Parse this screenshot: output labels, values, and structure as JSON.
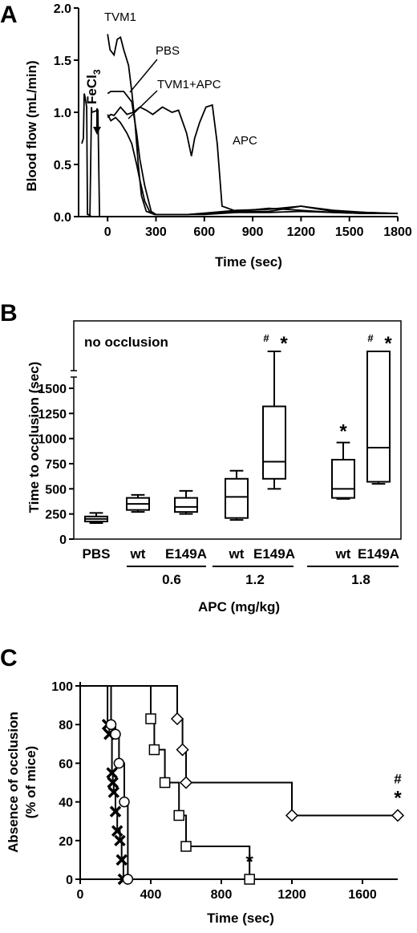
{
  "chart_data": [
    {
      "panel": "A",
      "type": "line",
      "xlabel": "Time (sec)",
      "ylabel": "Blood flow (mL/min)",
      "xlim": [
        -180,
        1800
      ],
      "ylim": [
        0,
        2.0
      ],
      "xticks": [
        "0",
        "300",
        "600",
        "900",
        "1200",
        "1500",
        "1800"
      ],
      "yticks": [
        "0.0",
        "0.5",
        "1.0",
        "1.5",
        "2.0"
      ],
      "annotation": "FeCl3",
      "series": [
        {
          "name": "TVM1",
          "x": [
            0,
            15,
            40,
            60,
            80,
            100,
            130,
            150,
            170,
            190,
            210,
            240,
            290,
            400,
            600,
            800,
            1000,
            1200,
            1400,
            1600,
            1800
          ],
          "y": [
            1.75,
            1.6,
            1.55,
            1.7,
            1.72,
            1.6,
            1.45,
            1.2,
            0.9,
            0.5,
            0.2,
            0.05,
            0.02,
            0.02,
            0.02,
            0.04,
            0.04,
            0.05,
            0.04,
            0.03,
            0.03
          ]
        },
        {
          "name": "PBS",
          "x": [
            0,
            20,
            40,
            100,
            150,
            180,
            200,
            230,
            270,
            300,
            500,
            800,
            1000,
            1200,
            1400,
            1600,
            1800
          ],
          "y": [
            1.18,
            1.2,
            1.2,
            1.2,
            1.1,
            0.8,
            0.55,
            0.3,
            0.05,
            0.02,
            0.02,
            0.05,
            0.08,
            0.06,
            0.04,
            0.03,
            0.03
          ]
        },
        {
          "name": "TVM1+APC",
          "x": [
            0,
            20,
            50,
            80,
            120,
            150,
            180,
            200,
            230,
            260,
            300,
            500,
            800,
            1000,
            1200,
            1400,
            1600,
            1800
          ],
          "y": [
            0.98,
            0.92,
            0.95,
            0.9,
            0.8,
            0.7,
            0.5,
            0.35,
            0.15,
            0.05,
            0.02,
            0.02,
            0.06,
            0.07,
            0.1,
            0.05,
            0.04,
            0.03
          ]
        },
        {
          "name": "APC",
          "x": [
            0,
            20,
            40,
            80,
            120,
            160,
            200,
            240,
            280,
            340,
            400,
            440,
            490,
            520,
            540,
            570,
            610,
            650,
            680,
            710,
            800,
            1000,
            1200,
            1400,
            1600,
            1800
          ],
          "y": [
            0.95,
            0.98,
            0.97,
            1.05,
            0.98,
            1.0,
            1.05,
            1.02,
            0.98,
            1.05,
            1.0,
            1.02,
            0.8,
            0.58,
            0.75,
            0.9,
            1.05,
            1.07,
            0.7,
            0.1,
            0.05,
            0.05,
            0.1,
            0.06,
            0.04,
            0.03
          ]
        },
        {
          "name": "",
          "x": [
            -160,
            -150,
            -145,
            -140,
            -130,
            -125,
            -120,
            -100
          ],
          "y": [
            0.7,
            0.75,
            1.18,
            1.15,
            1.05,
            0.02,
            0.02,
            0.0
          ]
        },
        {
          "name": "",
          "x": [
            -110,
            -100,
            -98,
            -60,
            -50
          ],
          "y": [
            0.0,
            1.05,
            1.0,
            1.02,
            0.0
          ]
        }
      ]
    },
    {
      "panel": "B",
      "type": "box",
      "ylabel": "Time to occlusion (sec)",
      "ylim": [
        0,
        1500
      ],
      "yticks": [
        "0",
        "250",
        "500",
        "750",
        "1000",
        "1250",
        "1500"
      ],
      "no_occlusion_label": "no occlusion",
      "categories": [
        "PBS",
        "wt",
        "E149A",
        "wt",
        "E149A",
        "wt",
        "E149A"
      ],
      "groups": [
        {
          "label": "0.6"
        },
        {
          "label": "1.2"
        },
        {
          "label": "1.8"
        }
      ],
      "group_title": "APC (mg/kg)",
      "boxes": [
        {
          "min": 160,
          "q1": 175,
          "median": 200,
          "q3": 225,
          "max": 260,
          "marks": ""
        },
        {
          "min": 270,
          "q1": 290,
          "median": 350,
          "q3": 410,
          "max": 440,
          "marks": ""
        },
        {
          "min": 250,
          "q1": 270,
          "median": 320,
          "q3": 410,
          "max": 480,
          "marks": ""
        },
        {
          "min": 190,
          "q1": 210,
          "median": 420,
          "q3": 600,
          "max": 680,
          "marks": ""
        },
        {
          "min": 500,
          "q1": 600,
          "median": 770,
          "q3": 1320,
          "max": "no occlusion",
          "marks": "# *"
        },
        {
          "min": 400,
          "q1": 410,
          "median": 500,
          "q3": 790,
          "max": 960,
          "marks": "*"
        },
        {
          "min": 550,
          "q1": 570,
          "median": 910,
          "q3": "no occlusion",
          "max": "no occlusion",
          "marks": "# *"
        }
      ]
    },
    {
      "panel": "C",
      "type": "line",
      "xlabel": "Time (sec)",
      "ylabel_line1": "Absence of occlusion",
      "ylabel_line2": "(% of mice)",
      "xlim": [
        0,
        1800
      ],
      "ylim": [
        0,
        100
      ],
      "xticks": [
        "0",
        "400",
        "800",
        "1200",
        "1600"
      ],
      "yticks": [
        "0",
        "20",
        "40",
        "60",
        "80",
        "100"
      ],
      "series": [
        {
          "marker": "cross",
          "x": [
            155,
            165,
            180,
            185,
            190,
            200,
            210,
            225,
            235,
            245
          ],
          "y": [
            80,
            75,
            55,
            50,
            45,
            35,
            25,
            20,
            10,
            0
          ]
        },
        {
          "marker": "circle",
          "x": [
            175,
            200,
            220,
            250,
            270
          ],
          "y": [
            80,
            75,
            60,
            40,
            0
          ]
        },
        {
          "marker": "square",
          "x": [
            400,
            420,
            480,
            560,
            600,
            960
          ],
          "y": [
            83,
            67,
            50,
            33,
            17,
            0
          ],
          "marks": "*"
        },
        {
          "marker": "diamond",
          "x": [
            550,
            580,
            600,
            1200,
            1800
          ],
          "y": [
            83,
            67,
            50,
            33,
            33
          ],
          "marks": "# *"
        }
      ]
    }
  ],
  "panels": {
    "a": "A",
    "b": "B",
    "c": "C"
  },
  "sub": {
    "fecl": "FeCl",
    "three": "3"
  }
}
